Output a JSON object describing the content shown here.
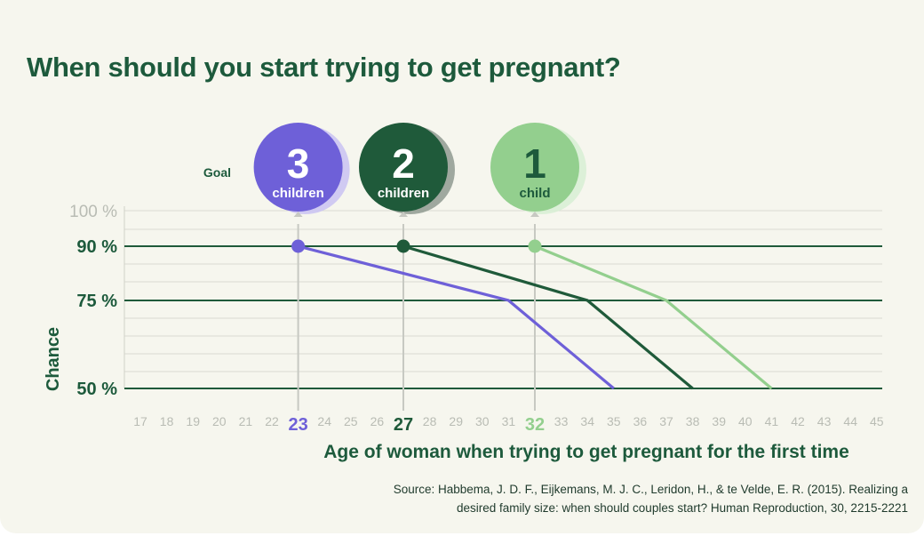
{
  "title": "When should you start trying to get pregnant?",
  "goal_label": "Goal",
  "source_line1": "Source: Habbema, J. D. F., Eijkemans, M. J. C., Leridon, H., & te Velde, E. R. (2015). Realizing a",
  "source_line2": "desired family size: when should couples start? Human Reproduction, 30, 2215-2221",
  "colors": {
    "three": "#6e60d8",
    "two": "#1f5a3a",
    "one": "#93cf8e",
    "axis_text": "#1d5a3c",
    "faint_text": "#b9bcb4"
  },
  "chart_data": {
    "type": "line",
    "title": "When should you start trying to get pregnant?",
    "xlabel": "Age of woman when trying to get pregnant for the first time",
    "ylabel": "Chance",
    "xlim": [
      17,
      45
    ],
    "x_ticks": [
      17,
      18,
      19,
      20,
      21,
      22,
      23,
      24,
      25,
      26,
      27,
      28,
      29,
      30,
      31,
      32,
      33,
      34,
      35,
      36,
      37,
      38,
      39,
      40,
      41,
      42,
      43,
      44,
      45
    ],
    "highlighted_ticks": [
      23,
      27,
      32
    ],
    "y_ticks": [
      {
        "label": "100 %",
        "value": 100,
        "faint": true
      },
      {
        "label": "90 %",
        "value": 90
      },
      {
        "label": "75 %",
        "value": 75
      },
      {
        "label": "50 %",
        "value": 50
      }
    ],
    "grid": true,
    "series": [
      {
        "name": "3 children",
        "number": "3",
        "unit": "children",
        "start_age": 23,
        "points": [
          [
            23,
            90
          ],
          [
            31,
            75
          ],
          [
            35,
            50
          ]
        ]
      },
      {
        "name": "2 children",
        "number": "2",
        "unit": "children",
        "start_age": 27,
        "points": [
          [
            27,
            90
          ],
          [
            34,
            75
          ],
          [
            38,
            50
          ]
        ]
      },
      {
        "name": "1 child",
        "number": "1",
        "unit": "child",
        "start_age": 32,
        "points": [
          [
            32,
            90
          ],
          [
            37,
            75
          ],
          [
            41,
            50
          ]
        ]
      }
    ]
  }
}
